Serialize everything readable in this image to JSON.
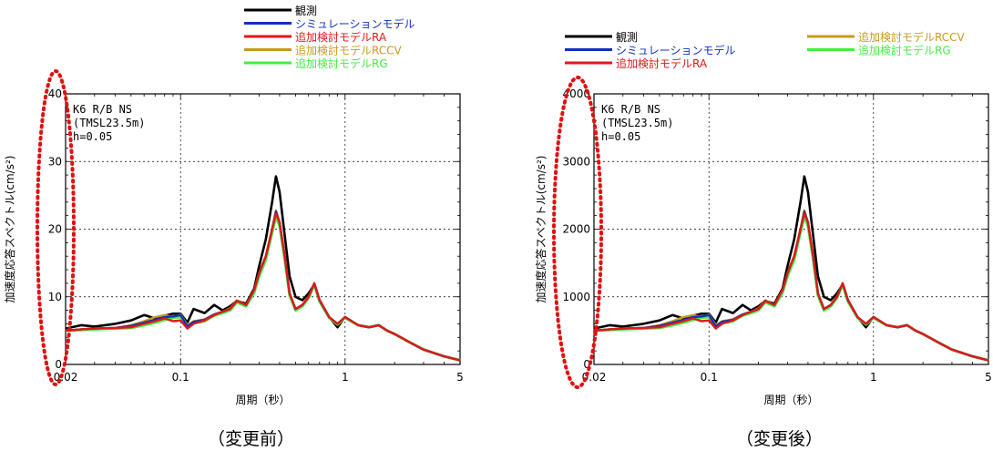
{
  "x_tick_labels": [
    "0.02",
    "0.1",
    "1",
    "5"
  ],
  "xlabel": "周期（秒）",
  "ylabel": "加速度応答スペクトル(cm/s²)",
  "annotation": [
    "K6 R/B NS",
    "(TMSL23.5m)",
    "h=0.05"
  ],
  "series_colors": {
    "obs": "#000000",
    "sim": "#1030c0",
    "ra": "#e01818",
    "rccv": "#c89a1e",
    "rg": "#44ee44"
  },
  "charts": [
    {
      "caption": "（変更前）",
      "y_tick_labels": [
        "0",
        "10",
        "20",
        "30",
        "40"
      ],
      "legend_rows": [
        [
          "観測"
        ],
        [
          "シミュレーションモデル"
        ],
        [
          "追加検討モデルRA"
        ],
        [
          "追加検討モデルRCCV"
        ],
        [
          "追加検討モデルRG"
        ]
      ]
    },
    {
      "caption": "（変更後）",
      "y_tick_labels": [
        "0",
        "1000",
        "2000",
        "3000",
        "4000"
      ],
      "legend_rows": [
        [
          "観測",
          "追加検討モデルRCCV"
        ],
        [
          "シミュレーションモデル",
          "追加検討モデルRG"
        ],
        [
          "追加検討モデルRA"
        ]
      ]
    }
  ],
  "chart_data": [
    {
      "type": "line",
      "xscale": "log",
      "xlim": [
        0.02,
        5
      ],
      "ylim": [
        0,
        40
      ],
      "xlabel": "周期（秒）",
      "ylabel": "加速度応答スペクトル(cm/s²)",
      "grid": true,
      "legend": "top-right",
      "series": [
        {
          "name": "観測",
          "color": "#000000",
          "x": [
            0.02,
            0.025,
            0.03,
            0.04,
            0.05,
            0.06,
            0.07,
            0.08,
            0.09,
            0.1,
            0.11,
            0.12,
            0.14,
            0.16,
            0.18,
            0.2,
            0.22,
            0.25,
            0.28,
            0.3,
            0.33,
            0.36,
            0.38,
            0.4,
            0.43,
            0.46,
            0.5,
            0.55,
            0.6,
            0.65,
            0.7,
            0.8,
            0.9,
            1.0,
            1.2,
            1.4,
            1.6,
            1.8,
            2.0,
            2.5,
            3.0,
            4.0,
            5.0
          ],
          "y": [
            5.3,
            5.8,
            5.6,
            6.0,
            6.5,
            7.3,
            6.8,
            7.2,
            7.5,
            7.5,
            6.2,
            8.2,
            7.6,
            8.8,
            8.0,
            8.6,
            9.4,
            9.0,
            11.2,
            14.5,
            18.5,
            24.0,
            27.8,
            25.5,
            19.0,
            13.0,
            10.0,
            9.5,
            10.5,
            11.8,
            9.5,
            7.0,
            5.5,
            7.0,
            5.8,
            5.5,
            5.8,
            5.0,
            4.5,
            3.2,
            2.2,
            1.2,
            0.6
          ]
        },
        {
          "name": "シミュレーションモデル",
          "color": "#1030c0",
          "x": [
            0.02,
            0.025,
            0.03,
            0.04,
            0.05,
            0.06,
            0.07,
            0.08,
            0.09,
            0.1,
            0.11,
            0.12,
            0.14,
            0.16,
            0.18,
            0.2,
            0.22,
            0.25,
            0.28,
            0.3,
            0.33,
            0.36,
            0.38,
            0.4,
            0.43,
            0.46,
            0.5,
            0.55,
            0.6,
            0.65,
            0.7,
            0.8,
            0.9,
            1.0,
            1.2,
            1.4,
            1.6,
            1.8,
            2.0,
            2.5,
            3.0,
            4.0,
            5.0
          ],
          "y": [
            5.0,
            5.2,
            5.3,
            5.4,
            5.7,
            6.2,
            6.6,
            7.0,
            7.1,
            7.3,
            5.6,
            6.3,
            6.6,
            7.4,
            7.8,
            8.2,
            9.4,
            8.8,
            11.0,
            13.5,
            16.0,
            20.0,
            22.6,
            21.0,
            16.0,
            10.5,
            8.2,
            8.8,
            10.0,
            12.0,
            9.5,
            7.0,
            6.0,
            7.0,
            5.8,
            5.5,
            5.8,
            5.0,
            4.5,
            3.2,
            2.2,
            1.2,
            0.6
          ]
        },
        {
          "name": "追加検討モデルRA",
          "color": "#e01818",
          "x": [
            0.02,
            0.025,
            0.03,
            0.04,
            0.05,
            0.06,
            0.07,
            0.08,
            0.09,
            0.1,
            0.11,
            0.12,
            0.14,
            0.16,
            0.18,
            0.2,
            0.22,
            0.25,
            0.28,
            0.3,
            0.33,
            0.36,
            0.38,
            0.4,
            0.43,
            0.46,
            0.5,
            0.55,
            0.6,
            0.65,
            0.7,
            0.8,
            0.9,
            1.0,
            1.2,
            1.4,
            1.6,
            1.8,
            2.0,
            2.5,
            3.0,
            4.0,
            5.0
          ],
          "y": [
            5.0,
            5.2,
            5.3,
            5.4,
            5.5,
            6.0,
            6.4,
            6.8,
            6.4,
            6.5,
            5.3,
            6.0,
            6.5,
            7.3,
            7.8,
            8.2,
            9.4,
            8.8,
            11.0,
            13.5,
            16.0,
            20.0,
            22.3,
            21.0,
            16.0,
            10.5,
            8.2,
            8.8,
            10.0,
            12.0,
            9.5,
            7.0,
            6.0,
            7.0,
            5.8,
            5.5,
            5.8,
            5.0,
            4.5,
            3.2,
            2.2,
            1.2,
            0.6
          ]
        },
        {
          "name": "追加検討モデルRCCV",
          "color": "#c89a1e",
          "x": [
            0.02,
            0.025,
            0.03,
            0.04,
            0.05,
            0.06,
            0.07,
            0.08,
            0.09,
            0.1,
            0.11,
            0.12,
            0.14,
            0.16,
            0.18,
            0.2,
            0.22,
            0.25,
            0.28,
            0.3,
            0.33,
            0.36,
            0.38,
            0.4,
            0.43,
            0.46,
            0.5,
            0.55,
            0.6,
            0.65,
            0.7,
            0.8,
            0.9,
            1.0,
            1.2,
            1.4,
            1.6,
            1.8,
            2.0,
            2.5,
            3.0,
            4.0,
            5.0
          ],
          "y": [
            5.0,
            5.2,
            5.3,
            5.4,
            5.8,
            6.4,
            7.0,
            7.3,
            7.0,
            7.4,
            5.8,
            6.4,
            6.7,
            7.4,
            7.8,
            8.3,
            9.5,
            8.8,
            11.0,
            13.5,
            16.0,
            20.0,
            22.8,
            21.0,
            16.0,
            10.5,
            8.2,
            8.8,
            10.0,
            12.0,
            9.5,
            7.0,
            6.0,
            7.0,
            5.8,
            5.5,
            5.8,
            5.0,
            4.5,
            3.2,
            2.2,
            1.2,
            0.6
          ]
        },
        {
          "name": "追加検討モデルRG",
          "color": "#44ee44",
          "x": [
            0.02,
            0.025,
            0.03,
            0.04,
            0.05,
            0.06,
            0.07,
            0.08,
            0.09,
            0.1,
            0.11,
            0.12,
            0.14,
            0.16,
            0.18,
            0.2,
            0.22,
            0.25,
            0.28,
            0.3,
            0.33,
            0.36,
            0.38,
            0.4,
            0.43,
            0.46,
            0.5,
            0.55,
            0.6,
            0.65,
            0.7,
            0.8,
            0.9,
            1.0,
            1.2,
            1.4,
            1.6,
            1.8,
            2.0,
            2.5,
            3.0,
            4.0,
            5.0
          ],
          "y": [
            5.0,
            5.1,
            5.2,
            5.3,
            5.4,
            5.8,
            6.2,
            6.6,
            6.9,
            7.0,
            5.8,
            6.1,
            6.4,
            7.2,
            7.6,
            8.0,
            9.2,
            8.6,
            10.6,
            13.0,
            15.5,
            19.5,
            21.8,
            20.5,
            15.5,
            10.2,
            8.0,
            8.6,
            9.8,
            11.8,
            9.3,
            6.9,
            5.9,
            6.9,
            5.8,
            5.5,
            5.8,
            5.0,
            4.5,
            3.2,
            2.2,
            1.2,
            0.6
          ]
        }
      ]
    },
    {
      "type": "line",
      "xscale": "log",
      "xlim": [
        0.02,
        5
      ],
      "ylim": [
        0,
        4000
      ],
      "xlabel": "周期（秒）",
      "ylabel": "加速度応答スペクトル(cm/s²)",
      "grid": true,
      "legend": "top",
      "series": [
        {
          "name": "観測",
          "color": "#000000",
          "x": [
            0.02,
            0.025,
            0.03,
            0.04,
            0.05,
            0.06,
            0.07,
            0.08,
            0.09,
            0.1,
            0.11,
            0.12,
            0.14,
            0.16,
            0.18,
            0.2,
            0.22,
            0.25,
            0.28,
            0.3,
            0.33,
            0.36,
            0.38,
            0.4,
            0.43,
            0.46,
            0.5,
            0.55,
            0.6,
            0.65,
            0.7,
            0.8,
            0.9,
            1.0,
            1.2,
            1.4,
            1.6,
            1.8,
            2.0,
            2.5,
            3.0,
            4.0,
            5.0
          ],
          "y": [
            530,
            580,
            560,
            600,
            650,
            730,
            680,
            720,
            750,
            750,
            620,
            820,
            760,
            880,
            800,
            860,
            940,
            900,
            1120,
            1450,
            1850,
            2400,
            2780,
            2550,
            1900,
            1300,
            1000,
            950,
            1050,
            1180,
            950,
            700,
            550,
            700,
            580,
            550,
            580,
            500,
            450,
            320,
            220,
            120,
            60
          ]
        },
        {
          "name": "シミュレーションモデル",
          "color": "#1030c0",
          "x": [
            0.02,
            0.025,
            0.03,
            0.04,
            0.05,
            0.06,
            0.07,
            0.08,
            0.09,
            0.1,
            0.11,
            0.12,
            0.14,
            0.16,
            0.18,
            0.2,
            0.22,
            0.25,
            0.28,
            0.3,
            0.33,
            0.36,
            0.38,
            0.4,
            0.43,
            0.46,
            0.5,
            0.55,
            0.6,
            0.65,
            0.7,
            0.8,
            0.9,
            1.0,
            1.2,
            1.4,
            1.6,
            1.8,
            2.0,
            2.5,
            3.0,
            4.0,
            5.0
          ],
          "y": [
            500,
            520,
            530,
            540,
            570,
            620,
            660,
            700,
            710,
            730,
            560,
            630,
            660,
            740,
            780,
            820,
            940,
            880,
            1100,
            1350,
            1600,
            2000,
            2260,
            2100,
            1600,
            1050,
            820,
            880,
            1000,
            1200,
            950,
            700,
            600,
            700,
            580,
            550,
            580,
            500,
            450,
            320,
            220,
            120,
            60
          ]
        },
        {
          "name": "追加検討モデルRA",
          "color": "#e01818",
          "x": [
            0.02,
            0.025,
            0.03,
            0.04,
            0.05,
            0.06,
            0.07,
            0.08,
            0.09,
            0.1,
            0.11,
            0.12,
            0.14,
            0.16,
            0.18,
            0.2,
            0.22,
            0.25,
            0.28,
            0.3,
            0.33,
            0.36,
            0.38,
            0.4,
            0.43,
            0.46,
            0.5,
            0.55,
            0.6,
            0.65,
            0.7,
            0.8,
            0.9,
            1.0,
            1.2,
            1.4,
            1.6,
            1.8,
            2.0,
            2.5,
            3.0,
            4.0,
            5.0
          ],
          "y": [
            500,
            520,
            530,
            540,
            550,
            600,
            640,
            680,
            640,
            650,
            530,
            600,
            650,
            730,
            780,
            820,
            940,
            880,
            1100,
            1350,
            1600,
            2000,
            2230,
            2100,
            1600,
            1050,
            820,
            880,
            1000,
            1200,
            950,
            700,
            600,
            700,
            580,
            550,
            580,
            500,
            450,
            320,
            220,
            120,
            60
          ]
        },
        {
          "name": "追加検討モデルRCCV",
          "color": "#c89a1e",
          "x": [
            0.02,
            0.025,
            0.03,
            0.04,
            0.05,
            0.06,
            0.07,
            0.08,
            0.09,
            0.1,
            0.11,
            0.12,
            0.14,
            0.16,
            0.18,
            0.2,
            0.22,
            0.25,
            0.28,
            0.3,
            0.33,
            0.36,
            0.38,
            0.4,
            0.43,
            0.46,
            0.5,
            0.55,
            0.6,
            0.65,
            0.7,
            0.8,
            0.9,
            1.0,
            1.2,
            1.4,
            1.6,
            1.8,
            2.0,
            2.5,
            3.0,
            4.0,
            5.0
          ],
          "y": [
            500,
            520,
            530,
            540,
            580,
            640,
            700,
            730,
            700,
            740,
            580,
            640,
            670,
            740,
            780,
            830,
            950,
            880,
            1100,
            1350,
            1600,
            2000,
            2280,
            2100,
            1600,
            1050,
            820,
            880,
            1000,
            1200,
            950,
            700,
            600,
            700,
            580,
            550,
            580,
            500,
            450,
            320,
            220,
            120,
            60
          ]
        },
        {
          "name": "追加検討モデルRG",
          "color": "#44ee44",
          "x": [
            0.02,
            0.025,
            0.03,
            0.04,
            0.05,
            0.06,
            0.07,
            0.08,
            0.09,
            0.1,
            0.11,
            0.12,
            0.14,
            0.16,
            0.18,
            0.2,
            0.22,
            0.25,
            0.28,
            0.3,
            0.33,
            0.36,
            0.38,
            0.4,
            0.43,
            0.46,
            0.5,
            0.55,
            0.6,
            0.65,
            0.7,
            0.8,
            0.9,
            1.0,
            1.2,
            1.4,
            1.6,
            1.8,
            2.0,
            2.5,
            3.0,
            4.0,
            5.0
          ],
          "y": [
            500,
            510,
            520,
            530,
            540,
            580,
            620,
            660,
            690,
            700,
            580,
            610,
            640,
            720,
            760,
            800,
            920,
            860,
            1060,
            1300,
            1550,
            1950,
            2180,
            2050,
            1550,
            1020,
            800,
            860,
            980,
            1180,
            930,
            690,
            590,
            690,
            580,
            550,
            580,
            500,
            450,
            320,
            220,
            120,
            60
          ]
        }
      ]
    }
  ]
}
